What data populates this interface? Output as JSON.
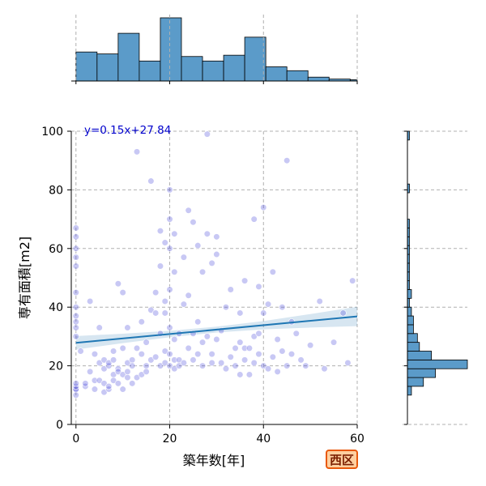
{
  "chart_data": {
    "type": "scatter",
    "xlabel": "築年数[年]",
    "ylabel": "専有面積[m2]",
    "xlim": [
      -1,
      60
    ],
    "ylim": [
      0,
      100
    ],
    "xticks": [
      0,
      20,
      40,
      60
    ],
    "yticks": [
      0,
      20,
      40,
      60,
      80,
      100
    ],
    "grid": true,
    "annotation": "y=0.15x+27.84",
    "badge": "西区",
    "regression": {
      "slope": 0.15,
      "intercept": 27.84
    },
    "marginal_x_bins": [
      0,
      4.5,
      9,
      13.5,
      18,
      22.5,
      27,
      31.5,
      36,
      40.5,
      45,
      49.5,
      54,
      58.5,
      60
    ],
    "marginal_x_heights": [
      45,
      42,
      74,
      31,
      98,
      38,
      31,
      40,
      68,
      22,
      16,
      6,
      3,
      2
    ],
    "marginal_y_bins": [
      10,
      13,
      16,
      19,
      22,
      25,
      28,
      31,
      34,
      37,
      40,
      43,
      46,
      49,
      52,
      55,
      58,
      61,
      64,
      67,
      70,
      73,
      76,
      79,
      82,
      85,
      88,
      91,
      94,
      97,
      100
    ],
    "marginal_y_counts": [
      2,
      8,
      14,
      30,
      12,
      6,
      5,
      3,
      3,
      2,
      1,
      2,
      1,
      1,
      1,
      1,
      1,
      1,
      1,
      1,
      0,
      0,
      0,
      1,
      0,
      0,
      0,
      0,
      0,
      1
    ],
    "marginal_y_max": 30,
    "series": [
      {
        "x": [
          0,
          0,
          0,
          0,
          0,
          0,
          0,
          0,
          0,
          0,
          0,
          0,
          0,
          0,
          0,
          0
        ],
        "y": [
          12,
          12,
          13,
          30,
          33,
          35,
          37,
          40,
          45,
          54,
          57,
          60,
          64,
          67,
          14,
          10
        ]
      },
      {
        "x": [
          1,
          2,
          2,
          3,
          3,
          4,
          4,
          4,
          5,
          5,
          5,
          6,
          6,
          6,
          6,
          7,
          7,
          7,
          7,
          8,
          8,
          8,
          8,
          9,
          9,
          9,
          9,
          10,
          10,
          10,
          10,
          11,
          11,
          11,
          11,
          12,
          12,
          12,
          13,
          13,
          13,
          14,
          14,
          14,
          15,
          15,
          15,
          16,
          16,
          16,
          17,
          17,
          17
        ],
        "y": [
          25,
          13,
          14,
          18,
          42,
          12,
          24,
          15,
          33,
          15,
          21,
          11,
          19,
          22,
          14,
          12,
          20,
          13,
          21,
          22,
          17,
          15,
          25,
          14,
          19,
          18,
          48,
          12,
          17,
          26,
          45,
          16,
          21,
          18,
          33,
          22,
          20,
          14,
          93,
          26,
          16,
          35,
          24,
          17,
          20,
          28,
          18,
          39,
          83,
          22,
          23,
          38,
          45
        ]
      },
      {
        "x": [
          18,
          18,
          18,
          18,
          19,
          19,
          19,
          19,
          19,
          20,
          20,
          20,
          20,
          20,
          20,
          20,
          21,
          21,
          21,
          21,
          21,
          22,
          22,
          22,
          23,
          23,
          23,
          24,
          24,
          24,
          25,
          25,
          25,
          26,
          26,
          26,
          27,
          27,
          27,
          28,
          28,
          28,
          29,
          29,
          29,
          30,
          30,
          30
        ],
        "y": [
          20,
          31,
          66,
          54,
          21,
          42,
          62,
          38,
          25,
          20,
          24,
          33,
          46,
          60,
          70,
          80,
          22,
          19,
          29,
          52,
          65,
          31,
          22,
          20,
          21,
          41,
          57,
          26,
          44,
          73,
          31,
          22,
          69,
          24,
          35,
          61,
          20,
          28,
          52,
          99,
          65,
          30,
          24,
          21,
          55,
          29,
          58,
          64
        ]
      },
      {
        "x": [
          31,
          31,
          32,
          32,
          33,
          33,
          34,
          34,
          35,
          35,
          35,
          36,
          36,
          36,
          37,
          37,
          38,
          38,
          38,
          39,
          39,
          39,
          40,
          40,
          40,
          41,
          41,
          42,
          42,
          43,
          43,
          44,
          44,
          45,
          45,
          46,
          46,
          47,
          48,
          49,
          50,
          52,
          53,
          55,
          57,
          58,
          59
        ],
        "y": [
          21,
          32,
          19,
          40,
          23,
          46,
          20,
          26,
          28,
          17,
          38,
          22,
          49,
          26,
          17,
          26,
          70,
          21,
          30,
          24,
          47,
          31,
          20,
          38,
          74,
          19,
          41,
          23,
          52,
          18,
          29,
          40,
          25,
          20,
          90,
          35,
          24,
          31,
          22,
          20,
          27,
          42,
          19,
          28,
          38,
          21,
          49
        ]
      }
    ]
  }
}
